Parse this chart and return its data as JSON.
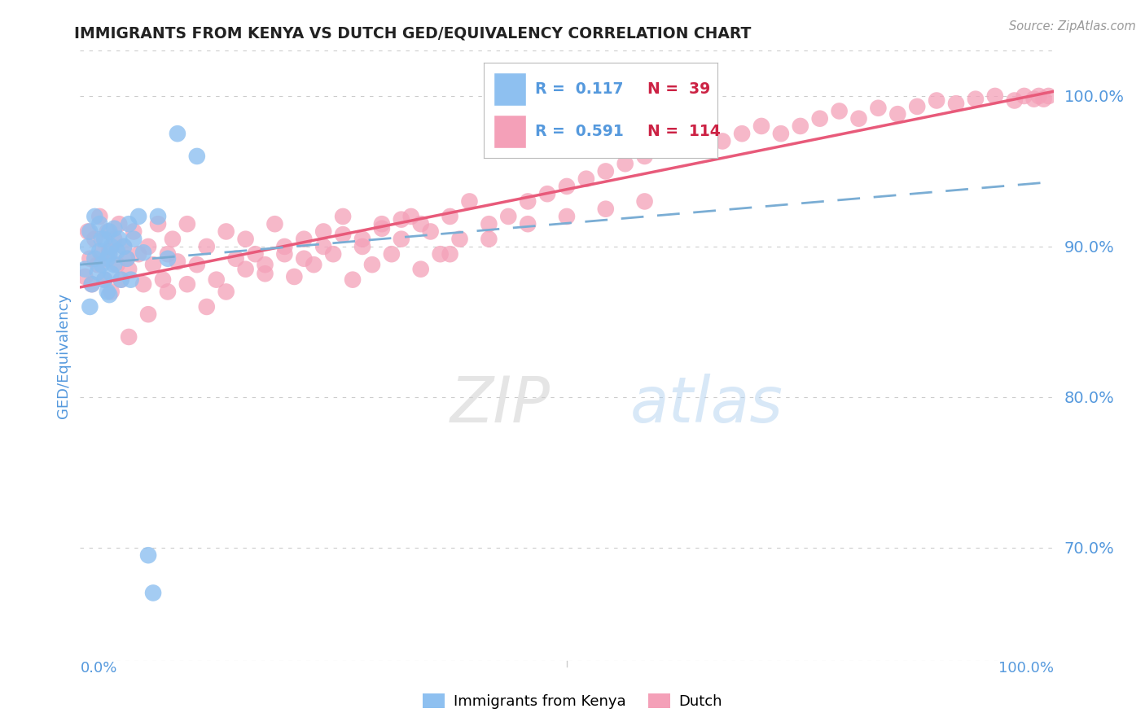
{
  "title": "IMMIGRANTS FROM KENYA VS DUTCH GED/EQUIVALENCY CORRELATION CHART",
  "source": "Source: ZipAtlas.com",
  "ylabel_left": "GED/Equivalency",
  "ytick_labels": [
    "70.0%",
    "80.0%",
    "90.0%",
    "100.0%"
  ],
  "ytick_values": [
    0.7,
    0.8,
    0.9,
    1.0
  ],
  "xlim": [
    0.0,
    1.0
  ],
  "ylim": [
    0.625,
    1.03
  ],
  "R_kenya": 0.117,
  "N_kenya": 39,
  "R_dutch": 0.591,
  "N_dutch": 114,
  "color_kenya": "#8ec0f0",
  "color_dutch": "#f4a0b8",
  "legend_labels": [
    "Immigrants from Kenya",
    "Dutch"
  ],
  "kenya_x": [
    0.005,
    0.008,
    0.01,
    0.01,
    0.012,
    0.015,
    0.015,
    0.018,
    0.02,
    0.02,
    0.022,
    0.022,
    0.025,
    0.025,
    0.028,
    0.028,
    0.03,
    0.03,
    0.03,
    0.032,
    0.032,
    0.035,
    0.035,
    0.038,
    0.04,
    0.042,
    0.045,
    0.048,
    0.05,
    0.052,
    0.055,
    0.06,
    0.065,
    0.07,
    0.075,
    0.08,
    0.09,
    0.1,
    0.12
  ],
  "kenya_y": [
    0.885,
    0.9,
    0.86,
    0.91,
    0.875,
    0.892,
    0.92,
    0.883,
    0.897,
    0.915,
    0.905,
    0.888,
    0.878,
    0.905,
    0.892,
    0.87,
    0.895,
    0.91,
    0.868,
    0.882,
    0.9,
    0.888,
    0.912,
    0.897,
    0.905,
    0.878,
    0.9,
    0.892,
    0.915,
    0.878,
    0.905,
    0.92,
    0.896,
    0.695,
    0.67,
    0.92,
    0.892,
    0.975,
    0.96
  ],
  "dutch_x": [
    0.005,
    0.008,
    0.01,
    0.012,
    0.015,
    0.018,
    0.02,
    0.022,
    0.025,
    0.028,
    0.03,
    0.032,
    0.035,
    0.038,
    0.04,
    0.042,
    0.045,
    0.048,
    0.05,
    0.055,
    0.06,
    0.065,
    0.07,
    0.075,
    0.08,
    0.085,
    0.09,
    0.095,
    0.1,
    0.11,
    0.12,
    0.13,
    0.14,
    0.15,
    0.16,
    0.17,
    0.18,
    0.19,
    0.2,
    0.21,
    0.22,
    0.23,
    0.24,
    0.25,
    0.26,
    0.27,
    0.28,
    0.29,
    0.3,
    0.31,
    0.32,
    0.33,
    0.34,
    0.35,
    0.36,
    0.37,
    0.38,
    0.39,
    0.4,
    0.42,
    0.44,
    0.46,
    0.48,
    0.5,
    0.52,
    0.54,
    0.56,
    0.58,
    0.6,
    0.62,
    0.64,
    0.66,
    0.68,
    0.7,
    0.72,
    0.74,
    0.76,
    0.78,
    0.8,
    0.82,
    0.84,
    0.86,
    0.88,
    0.9,
    0.92,
    0.94,
    0.96,
    0.97,
    0.98,
    0.985,
    0.99,
    0.995,
    0.05,
    0.07,
    0.09,
    0.11,
    0.13,
    0.15,
    0.17,
    0.19,
    0.21,
    0.23,
    0.25,
    0.27,
    0.29,
    0.31,
    0.33,
    0.35,
    0.38,
    0.42,
    0.46,
    0.5,
    0.54,
    0.58
  ],
  "dutch_y": [
    0.88,
    0.91,
    0.892,
    0.875,
    0.905,
    0.888,
    0.92,
    0.895,
    0.878,
    0.91,
    0.897,
    0.87,
    0.905,
    0.888,
    0.915,
    0.878,
    0.9,
    0.892,
    0.885,
    0.91,
    0.895,
    0.875,
    0.9,
    0.888,
    0.915,
    0.878,
    0.895,
    0.905,
    0.89,
    0.915,
    0.888,
    0.9,
    0.878,
    0.91,
    0.892,
    0.905,
    0.895,
    0.888,
    0.915,
    0.9,
    0.88,
    0.905,
    0.888,
    0.91,
    0.895,
    0.92,
    0.878,
    0.9,
    0.888,
    0.915,
    0.895,
    0.905,
    0.92,
    0.885,
    0.91,
    0.895,
    0.92,
    0.905,
    0.93,
    0.915,
    0.92,
    0.93,
    0.935,
    0.94,
    0.945,
    0.95,
    0.955,
    0.96,
    0.965,
    0.97,
    0.965,
    0.97,
    0.975,
    0.98,
    0.975,
    0.98,
    0.985,
    0.99,
    0.985,
    0.992,
    0.988,
    0.993,
    0.997,
    0.995,
    0.998,
    1.0,
    0.997,
    1.0,
    0.998,
    1.0,
    0.998,
    1.0,
    0.84,
    0.855,
    0.87,
    0.875,
    0.86,
    0.87,
    0.885,
    0.882,
    0.895,
    0.892,
    0.9,
    0.908,
    0.905,
    0.912,
    0.918,
    0.915,
    0.895,
    0.905,
    0.915,
    0.92,
    0.925,
    0.93
  ],
  "background_color": "#ffffff",
  "grid_color": "#cccccc",
  "title_color": "#222222",
  "axis_label_color": "#5599dd",
  "tick_label_color": "#5599dd",
  "line_kenya_color": "#7aadd4",
  "line_dutch_color": "#e85a7a",
  "watermark_zip_color": "#cccccc",
  "watermark_atlas_color": "#aaccee"
}
